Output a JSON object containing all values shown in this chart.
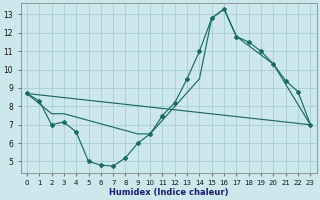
{
  "xlabel": "Humidex (Indice chaleur)",
  "xlim": [
    -0.5,
    23.5
  ],
  "ylim": [
    4.4,
    13.6
  ],
  "xticks": [
    0,
    1,
    2,
    3,
    4,
    5,
    6,
    7,
    8,
    9,
    10,
    11,
    12,
    13,
    14,
    15,
    16,
    17,
    18,
    19,
    20,
    21,
    22,
    23
  ],
  "yticks": [
    5,
    6,
    7,
    8,
    9,
    10,
    11,
    12,
    13
  ],
  "bg_color": "#cde8ed",
  "line_color": "#1a6b60",
  "grid_color": "#b0d0d8",
  "line1_x": [
    0,
    1,
    2,
    3,
    4,
    5,
    6,
    7,
    8,
    9,
    10,
    11,
    12,
    13,
    14,
    15,
    16,
    17,
    18,
    19,
    20,
    21,
    22,
    23
  ],
  "line1_y": [
    8.7,
    8.3,
    7.0,
    7.15,
    6.6,
    5.0,
    4.8,
    4.75,
    5.2,
    6.0,
    6.5,
    7.5,
    8.2,
    9.5,
    11.0,
    12.8,
    13.3,
    11.8,
    11.5,
    11.0,
    10.3,
    9.4,
    8.8,
    7.0
  ],
  "line2_x": [
    0,
    2,
    3,
    9,
    10,
    14,
    15,
    16,
    17,
    20,
    23
  ],
  "line2_y": [
    8.7,
    7.6,
    7.6,
    6.5,
    6.5,
    9.5,
    12.8,
    13.3,
    11.8,
    10.3,
    7.0
  ],
  "line3_x": [
    0,
    23
  ],
  "line3_y": [
    8.7,
    7.0
  ]
}
